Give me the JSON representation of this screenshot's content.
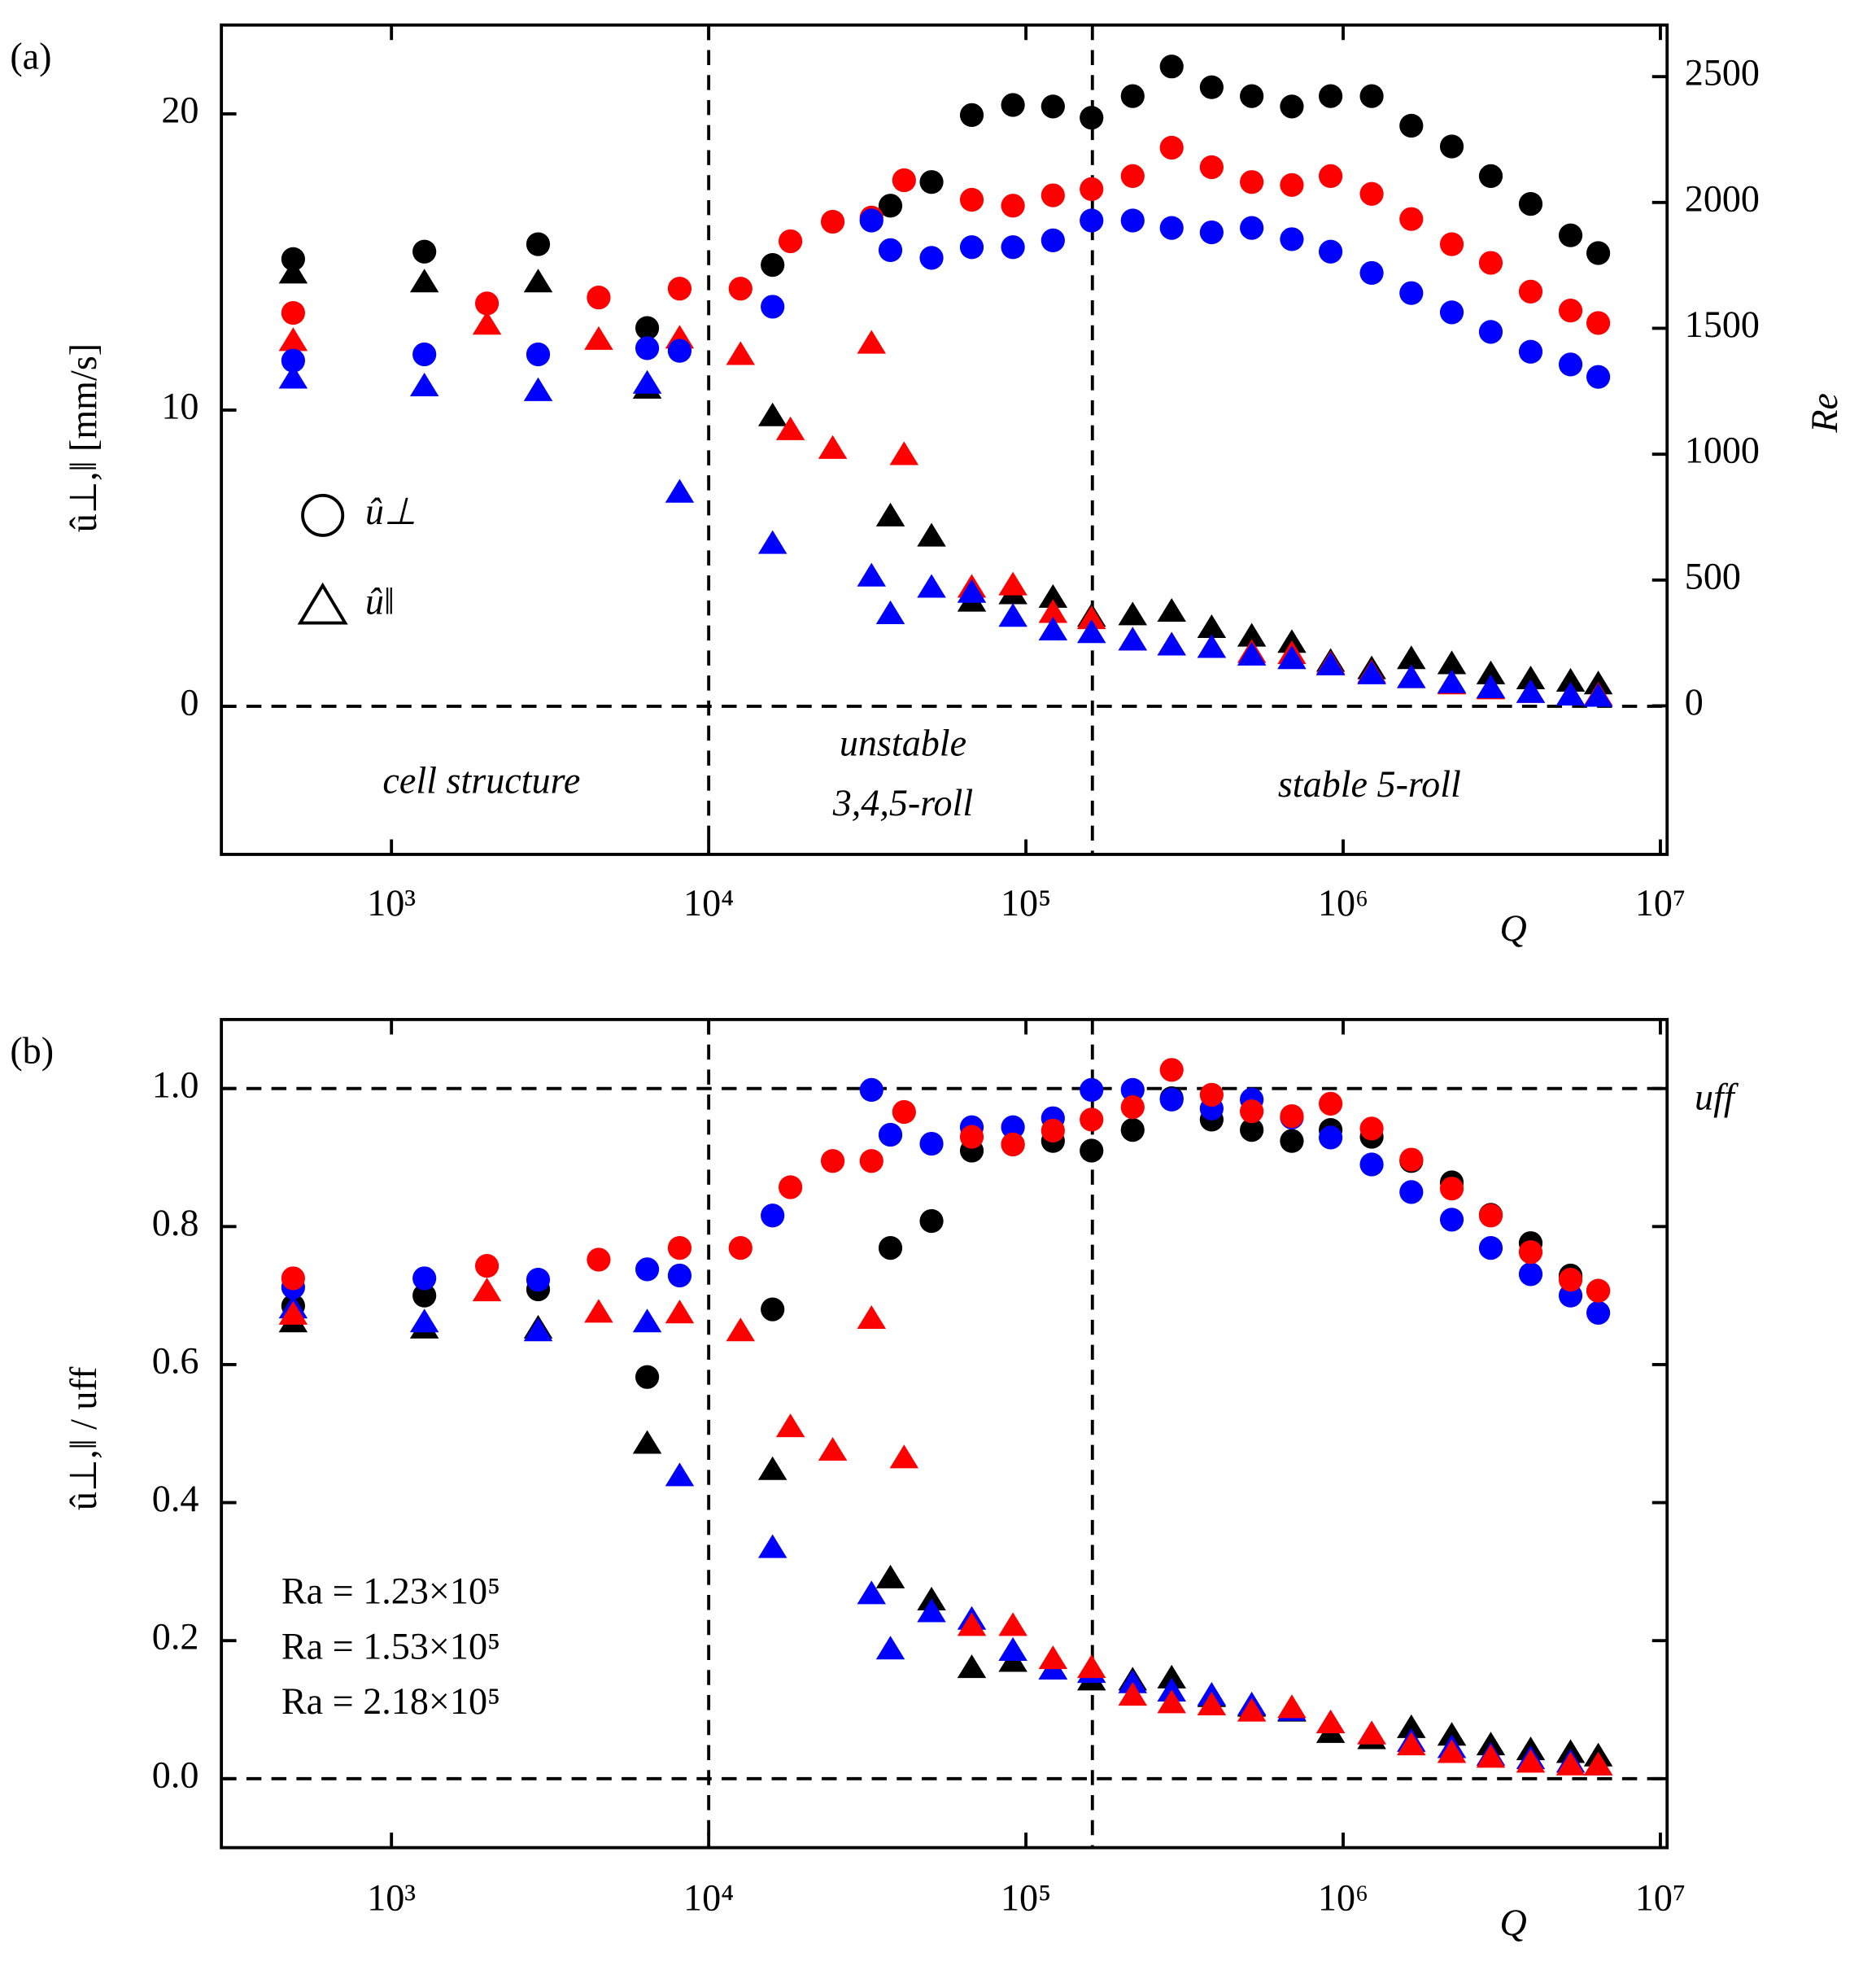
{
  "chart_data": [
    {
      "type": "scatter",
      "panel": "(a)",
      "xlabel": "Q",
      "ylabel": "û⊥,‖ [mm/s]",
      "y2label": "Re",
      "xscale": "log",
      "xlim": [
        291,
        10500000
      ],
      "xticks": [
        {
          "value": 1000,
          "label": "10³"
        },
        {
          "value": 10000,
          "label": "10⁴"
        },
        {
          "value": 100000,
          "label": "10⁵"
        },
        {
          "value": 1000000,
          "label": "10⁶"
        },
        {
          "value": 10000000,
          "label": "10⁷"
        }
      ],
      "ylim": [
        -5,
        23
      ],
      "yticks": [
        0,
        10,
        20
      ],
      "y2lim": [
        -590,
        2705
      ],
      "y2ticks": [
        0,
        500,
        1000,
        1500,
        2000,
        2500
      ],
      "vlines": [
        10000,
        162000
      ],
      "hlines": [
        0
      ],
      "annotations": [
        "cell structure",
        "unstable",
        "3,4,5-roll",
        "stable 5-roll"
      ],
      "legend": [
        {
          "marker": "circle",
          "label": "û⊥"
        },
        {
          "marker": "triangle",
          "label": "û‖"
        }
      ],
      "series": [
        {
          "color": "#000000",
          "marker": "circle",
          "x": [
            490,
            1270,
            2900,
            6400,
            15900,
            37400,
            50400,
            67500,
            91000,
            121700,
            161000,
            217000,
            288000,
            385000,
            515000,
            689000,
            913000,
            1230000,
            1640000,
            2200000,
            2920000,
            3900000,
            5210000,
            6370000
          ],
          "values": [
            15.1,
            15.35,
            15.6,
            12.77,
            14.9,
            16.9,
            17.7,
            19.96,
            20.3,
            20.25,
            19.87,
            20.6,
            21.6,
            20.9,
            20.6,
            20.25,
            20.6,
            20.6,
            19.6,
            18.9,
            17.9,
            16.96,
            15.9,
            15.3
          ]
        },
        {
          "color": "#000000",
          "marker": "triangle",
          "x": [
            490,
            1270,
            2900,
            6400,
            15900,
            37400,
            50400,
            67500,
            91000,
            121700,
            161000,
            217000,
            288000,
            385000,
            515000,
            689000,
            913000,
            1230000,
            1640000,
            2200000,
            2920000,
            3900000,
            5210000,
            6370000
          ],
          "values": [
            14.63,
            14.33,
            14.33,
            10.74,
            9.81,
            6.43,
            5.75,
            3.55,
            3.8,
            3.68,
            3.04,
            3.09,
            3.21,
            2.66,
            2.37,
            2.16,
            1.52,
            1.27,
            1.61,
            1.44,
            1.1,
            0.93,
            0.85,
            0.76
          ]
        },
        {
          "color": "#ff0000",
          "marker": "circle",
          "x": [
            490,
            2000,
            4500,
            8100,
            12600,
            18100,
            24600,
            32600,
            41300,
            67500,
            91000,
            121700,
            161000,
            217000,
            288000,
            385000,
            515000,
            689000,
            913000,
            1230000,
            1640000,
            2200000,
            2920000,
            3900000,
            5210000,
            6370000
          ],
          "values": [
            13.28,
            13.6,
            13.8,
            14.1,
            14.1,
            15.7,
            16.36,
            16.5,
            17.76,
            17.1,
            16.9,
            17.25,
            17.46,
            17.9,
            18.86,
            18.2,
            17.7,
            17.6,
            17.9,
            17.3,
            16.45,
            15.6,
            14.97,
            14.0,
            13.36,
            12.94
          ]
        },
        {
          "color": "#ff0000",
          "marker": "triangle",
          "x": [
            490,
            2000,
            4500,
            8100,
            12600,
            18100,
            24600,
            32600,
            41300,
            67500,
            91000,
            121700,
            161000,
            217000,
            288000,
            385000,
            515000,
            689000,
            913000,
            1230000,
            1640000,
            2200000,
            2920000,
            3900000,
            5210000,
            6370000
          ],
          "values": [
            12.35,
            12.9,
            12.39,
            12.43,
            11.88,
            9.34,
            8.71,
            12.26,
            8.5,
            4.02,
            4.1,
            3.17,
            2.96,
            2.24,
            2.07,
            1.99,
            1.82,
            1.78,
            1.44,
            1.14,
            0.97,
            0.76,
            0.59,
            0.47,
            0.38,
            0.38
          ]
        },
        {
          "color": "#0000ff",
          "marker": "circle",
          "x": [
            490,
            1270,
            2900,
            6400,
            8100,
            15900,
            32600,
            37400,
            50400,
            67500,
            91000,
            121700,
            161000,
            217000,
            288000,
            385000,
            515000,
            689000,
            913000,
            1230000,
            1640000,
            2200000,
            2920000,
            3900000,
            5210000,
            6370000
          ],
          "values": [
            11.67,
            11.88,
            11.88,
            12.09,
            12.0,
            13.49,
            16.4,
            15.4,
            15.14,
            15.5,
            15.5,
            15.73,
            16.4,
            16.4,
            16.15,
            16.0,
            16.15,
            15.77,
            15.35,
            14.63,
            13.95,
            13.3,
            12.64,
            11.97,
            11.54,
            11.12
          ]
        },
        {
          "color": "#0000ff",
          "marker": "triangle",
          "x": [
            490,
            1270,
            2900,
            6400,
            8100,
            15900,
            32600,
            37400,
            50400,
            67500,
            91000,
            121700,
            161000,
            217000,
            288000,
            385000,
            515000,
            689000,
            913000,
            1230000,
            1640000,
            2200000,
            2920000,
            3900000,
            5210000,
            6370000
          ],
          "values": [
            11.08,
            10.82,
            10.66,
            10.91,
            7.23,
            5.5,
            4.4,
            3.13,
            4.02,
            3.85,
            3.04,
            2.58,
            2.49,
            2.24,
            2.07,
            1.99,
            1.73,
            1.61,
            1.4,
            1.1,
            0.97,
            0.8,
            0.63,
            0.47,
            0.38,
            0.34
          ]
        }
      ]
    },
    {
      "type": "scatter",
      "panel": "(b)",
      "xlabel": "Q",
      "ylabel": "û⊥,‖ / uff",
      "reflabel": "uff",
      "xscale": "log",
      "xlim": [
        291,
        10500000
      ],
      "xticks": [
        {
          "value": 1000,
          "label": "10³"
        },
        {
          "value": 10000,
          "label": "10⁴"
        },
        {
          "value": 100000,
          "label": "10⁵"
        },
        {
          "value": 1000000,
          "label": "10⁶"
        },
        {
          "value": 10000000,
          "label": "10⁷"
        }
      ],
      "ylim": [
        -0.1,
        1.1
      ],
      "yticks": [
        {
          "value": 0,
          "label": "0.0"
        },
        0.2,
        0.4,
        0.6,
        0.8,
        {
          "value": 1,
          "label": "1.0"
        }
      ],
      "vlines": [
        10000,
        162000
      ],
      "hlines": [
        0,
        1
      ],
      "legend": [
        {
          "color": "#0000ff",
          "label": "Ra = 1.23×10⁵"
        },
        {
          "color": "#ff0000",
          "label": "Ra = 1.53×10⁵"
        },
        {
          "color": "#000000",
          "label": "Ra = 2.18×10⁵"
        }
      ],
      "series": [
        {
          "color": "#000000",
          "marker": "circle",
          "x": [
            490,
            1270,
            2900,
            6400,
            15900,
            37400,
            50400,
            67500,
            91000,
            121700,
            161000,
            217000,
            288000,
            385000,
            515000,
            689000,
            913000,
            1230000,
            1640000,
            2200000,
            2920000,
            3900000,
            5210000,
            6370000
          ],
          "values": [
            0.685,
            0.7,
            0.709,
            0.582,
            0.68,
            0.769,
            0.808,
            0.91,
            0.919,
            0.924,
            0.91,
            0.94,
            0.986,
            0.955,
            0.94,
            0.924,
            0.94,
            0.93,
            0.895,
            0.864,
            0.817,
            0.776,
            0.729,
            0.707
          ]
        },
        {
          "color": "#000000",
          "marker": "triangle",
          "x": [
            490,
            1270,
            2900,
            6400,
            15900,
            37400,
            50400,
            67500,
            91000,
            121700,
            161000,
            217000,
            288000,
            385000,
            515000,
            689000,
            913000,
            1230000,
            1640000,
            2200000,
            2920000,
            3900000,
            5210000,
            6370000
          ],
          "values": [
            0.662,
            0.653,
            0.653,
            0.486,
            0.448,
            0.291,
            0.259,
            0.161,
            0.17,
            0.159,
            0.143,
            0.143,
            0.146,
            0.119,
            0.105,
            0.098,
            0.067,
            0.058,
            0.074,
            0.063,
            0.049,
            0.042,
            0.038,
            0.033
          ]
        },
        {
          "color": "#0000ff",
          "marker": "circle",
          "x": [
            490,
            1270,
            2900,
            6400,
            8100,
            15900,
            32600,
            37400,
            50400,
            67500,
            91000,
            121700,
            161000,
            217000,
            288000,
            385000,
            515000,
            689000,
            913000,
            1230000,
            1640000,
            2200000,
            2920000,
            3900000,
            5210000,
            6370000
          ],
          "values": [
            0.712,
            0.725,
            0.723,
            0.738,
            0.729,
            0.816,
            0.998,
            0.933,
            0.92,
            0.944,
            0.944,
            0.957,
            0.998,
            0.998,
            0.984,
            0.971,
            0.984,
            0.958,
            0.929,
            0.89,
            0.85,
            0.81,
            0.769,
            0.731,
            0.7,
            0.675
          ]
        },
        {
          "color": "#ff0000",
          "marker": "circle",
          "x": [
            490,
            2000,
            4500,
            8100,
            12600,
            18100,
            24600,
            32600,
            41300,
            67500,
            91000,
            121700,
            161000,
            217000,
            288000,
            385000,
            515000,
            689000,
            913000,
            1230000,
            1640000,
            2200000,
            2920000,
            3900000,
            5210000,
            6370000
          ],
          "values": [
            0.725,
            0.743,
            0.752,
            0.769,
            0.769,
            0.857,
            0.895,
            0.895,
            0.966,
            0.93,
            0.919,
            0.939,
            0.955,
            0.973,
            1.027,
            0.991,
            0.967,
            0.96,
            0.978,
            0.942,
            0.897,
            0.855,
            0.816,
            0.763,
            0.723,
            0.707
          ]
        },
        {
          "color": "#0000ff",
          "marker": "triangle",
          "x": [
            490,
            1270,
            2900,
            6400,
            8100,
            15900,
            32600,
            37400,
            50400,
            67500,
            91000,
            121700,
            161000,
            217000,
            288000,
            385000,
            515000,
            689000,
            913000,
            1230000,
            1640000,
            2200000,
            2920000,
            3900000,
            5210000,
            6370000
          ],
          "values": [
            0.682,
            0.662,
            0.649,
            0.662,
            0.439,
            0.335,
            0.268,
            0.188,
            0.242,
            0.231,
            0.186,
            0.159,
            0.154,
            0.139,
            0.127,
            0.121,
            0.107,
            0.099,
            0.081,
            0.065,
            0.054,
            0.045,
            0.034,
            0.029,
            0.024,
            0.02
          ]
        },
        {
          "color": "#ff0000",
          "marker": "triangle",
          "x": [
            490,
            2000,
            4500,
            8100,
            12600,
            18100,
            24600,
            32600,
            41300,
            67500,
            91000,
            121700,
            161000,
            217000,
            288000,
            385000,
            515000,
            689000,
            913000,
            1230000,
            1640000,
            2200000,
            2920000,
            3900000,
            5210000,
            6370000
          ],
          "values": [
            0.673,
            0.707,
            0.676,
            0.675,
            0.649,
            0.51,
            0.476,
            0.667,
            0.465,
            0.222,
            0.222,
            0.174,
            0.161,
            0.121,
            0.11,
            0.107,
            0.098,
            0.103,
            0.081,
            0.065,
            0.049,
            0.038,
            0.031,
            0.024,
            0.02,
            0.02
          ]
        }
      ]
    }
  ]
}
